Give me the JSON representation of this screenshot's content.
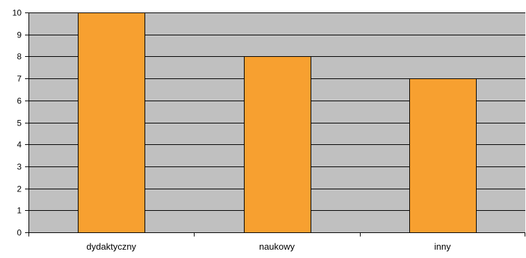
{
  "chart_data": {
    "type": "bar",
    "categories": [
      "dydaktyczny",
      "naukowy",
      "inny"
    ],
    "values": [
      10,
      8,
      7
    ],
    "title": "",
    "xlabel": "",
    "ylabel": "",
    "ylim": [
      0,
      10
    ],
    "yticks": [
      0,
      1,
      2,
      3,
      4,
      5,
      6,
      7,
      8,
      9,
      10
    ],
    "grid": true,
    "legend": "none"
  },
  "colors": {
    "plot_background": "#c0c0c0",
    "bar_fill": "#f7a030",
    "bar_stroke": "#000000",
    "gridline": "#000000",
    "axis": "#000000"
  }
}
